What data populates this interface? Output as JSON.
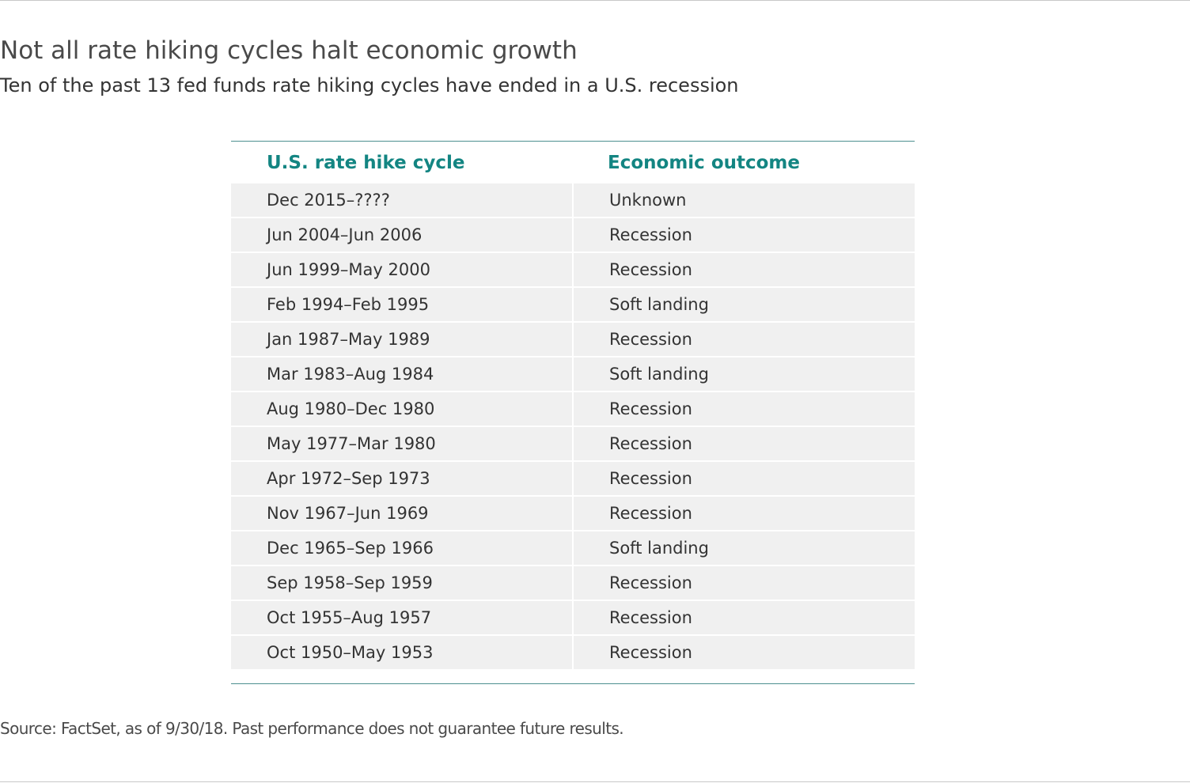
{
  "chart_data": {
    "type": "table",
    "title": "Not all rate hiking cycles halt economic growth",
    "subtitle": "Ten of the past 13 fed funds rate hiking cycles have ended in a U.S. recession",
    "columns": [
      "U.S. rate hike cycle",
      "Economic outcome"
    ],
    "rows": [
      [
        "Dec 2015–????",
        "Unknown"
      ],
      [
        "Jun 2004–Jun 2006",
        "Recession"
      ],
      [
        "Jun 1999–May 2000",
        "Recession"
      ],
      [
        "Feb 1994–Feb 1995",
        "Soft landing"
      ],
      [
        "Jan 1987–May 1989",
        "Recession"
      ],
      [
        "Mar 1983–Aug 1984",
        "Soft landing"
      ],
      [
        "Aug 1980–Dec 1980",
        "Recession"
      ],
      [
        "May 1977–Mar 1980",
        "Recession"
      ],
      [
        "Apr 1972–Sep 1973",
        "Recession"
      ],
      [
        "Nov 1967–Jun 1969",
        "Recession"
      ],
      [
        "Dec 1965–Sep 1966",
        "Soft landing"
      ],
      [
        "Sep 1958–Sep 1959",
        "Recession"
      ],
      [
        "Oct 1955–Aug 1957",
        "Recession"
      ],
      [
        "Oct 1950–May 1953",
        "Recession"
      ]
    ],
    "source": "Source: FactSet, as of 9/30/18. Past performance does not guarantee future results."
  },
  "colors": {
    "header_text": "#138582",
    "rule": "#4d8f8f",
    "row_fill": "#f0f0f0"
  }
}
